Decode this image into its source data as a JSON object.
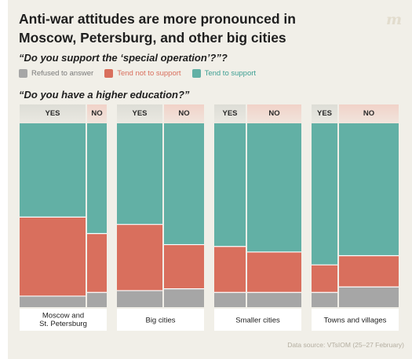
{
  "title": "Anti-war attitudes are more pronounced in Moscow, Petersburg, and other big cities",
  "logo": "m",
  "source": "Data source: VTsIOM (25–27 February)",
  "colors": {
    "refused": "#a6a6a6",
    "not_support": "#d96f5d",
    "support": "#62b0a5",
    "header_yes": "#ddddd6",
    "header_no": "#f1d2c8"
  },
  "chart_data": {
    "type": "mosaic",
    "question_color": "Do you support the ‘special operation’?",
    "question_split": "Do you have a higher education?",
    "split_labels": [
      "YES",
      "NO"
    ],
    "legend": [
      {
        "name": "Refused to answer",
        "key": "refused"
      },
      {
        "name": "Tend not to support",
        "key": "not_support"
      },
      {
        "name": "Tend to support",
        "key": "support"
      }
    ],
    "groups": [
      {
        "name": "Moscow and St. Petersburg",
        "lines": [
          "Moscow and",
          "St. Petersburg"
        ],
        "yes_share": 0.77,
        "yes": {
          "refused": 6,
          "not_support": 43,
          "support": 51
        },
        "no": {
          "refused": 8,
          "not_support": 32,
          "support": 60
        }
      },
      {
        "name": "Big cities",
        "lines": [
          "Big cities"
        ],
        "yes_share": 0.53,
        "yes": {
          "refused": 9,
          "not_support": 36,
          "support": 55
        },
        "no": {
          "refused": 10,
          "not_support": 24,
          "support": 66
        }
      },
      {
        "name": "Smaller cities",
        "lines": [
          "Smaller cities"
        ],
        "yes_share": 0.37,
        "yes": {
          "refused": 8,
          "not_support": 25,
          "support": 67
        },
        "no": {
          "refused": 8,
          "not_support": 22,
          "support": 70
        }
      },
      {
        "name": "Towns and villages",
        "lines": [
          "Towns and villages"
        ],
        "yes_share": 0.3,
        "yes": {
          "refused": 8,
          "not_support": 15,
          "support": 77
        },
        "no": {
          "refused": 11,
          "not_support": 17,
          "support": 72
        }
      }
    ]
  }
}
